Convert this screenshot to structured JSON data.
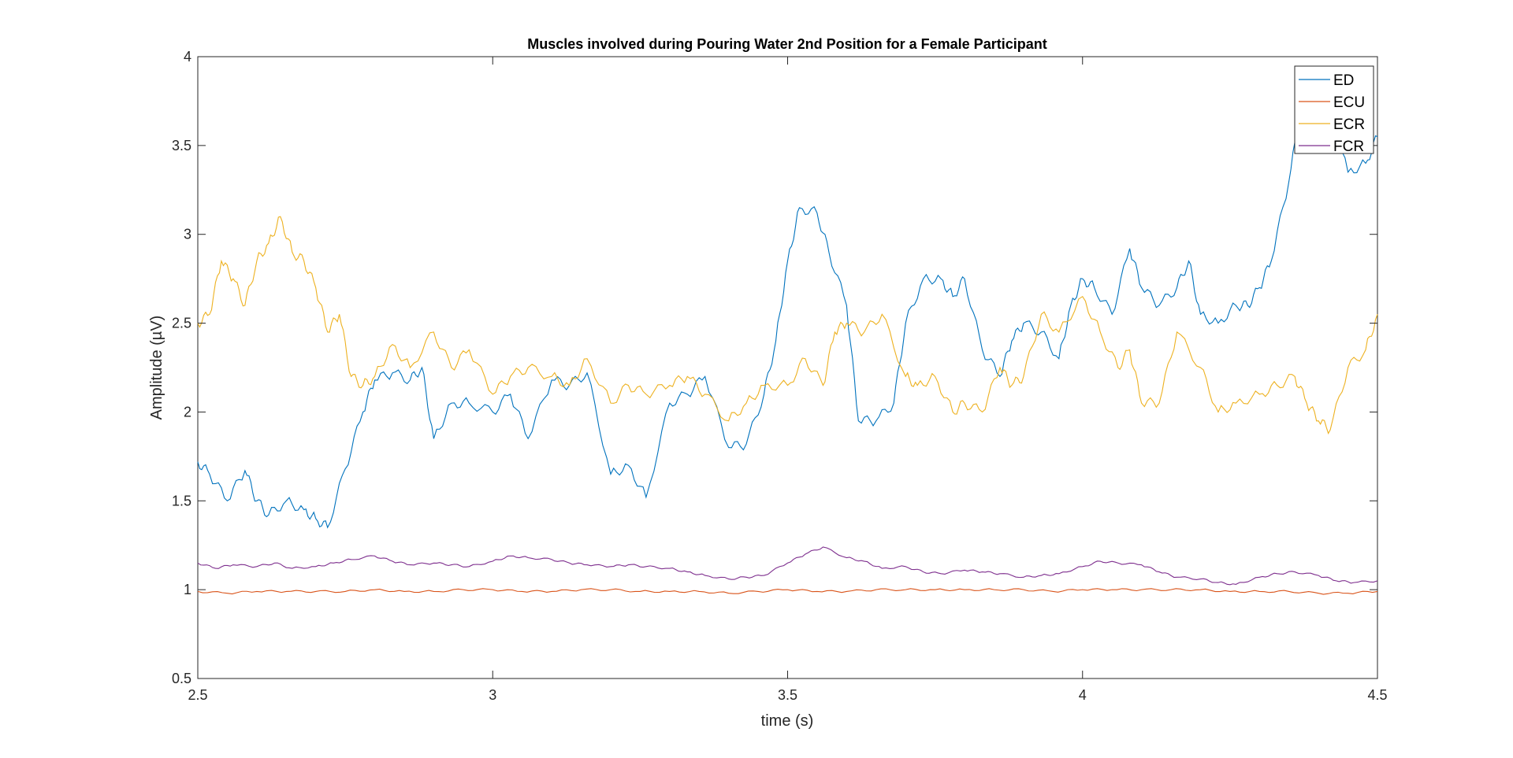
{
  "chart_data": {
    "type": "line",
    "title": "Muscles involved during Pouring Water 2nd Position for a Female Participant",
    "xlabel": "time (s)",
    "ylabel": "Amplitude (µV)",
    "xlim": [
      2.5,
      4.5
    ],
    "ylim": [
      0.5,
      4
    ],
    "xticks": [
      2.5,
      3,
      3.5,
      4,
      4.5
    ],
    "xtick_labels": [
      "2.5",
      "3",
      "3.5",
      "4",
      "4.5"
    ],
    "yticks": [
      0.5,
      1,
      1.5,
      2,
      2.5,
      3,
      3.5,
      4
    ],
    "ytick_labels": [
      "0.5",
      "1",
      "1.5",
      "2",
      "2.5",
      "3",
      "3.5",
      "4"
    ],
    "grid": false,
    "legend_position": "top-right",
    "series": [
      {
        "name": "ED",
        "color": "#0072BD",
        "x": [
          2.5,
          2.52,
          2.55,
          2.58,
          2.6,
          2.62,
          2.65,
          2.68,
          2.7,
          2.72,
          2.75,
          2.78,
          2.8,
          2.83,
          2.86,
          2.88,
          2.9,
          2.93,
          2.96,
          3.0,
          3.03,
          3.06,
          3.1,
          3.13,
          3.16,
          3.2,
          3.23,
          3.26,
          3.3,
          3.33,
          3.36,
          3.4,
          3.43,
          3.46,
          3.48,
          3.5,
          3.52,
          3.55,
          3.57,
          3.6,
          3.62,
          3.65,
          3.68,
          3.7,
          3.73,
          3.76,
          3.78,
          3.8,
          3.83,
          3.86,
          3.88,
          3.9,
          3.93,
          3.96,
          3.98,
          4.0,
          4.02,
          4.05,
          4.08,
          4.1,
          4.13,
          4.16,
          4.18,
          4.2,
          4.23,
          4.26,
          4.28,
          4.3,
          4.32,
          4.35,
          4.37,
          4.4,
          4.42,
          4.45,
          4.48,
          4.5
        ],
        "y": [
          1.72,
          1.65,
          1.5,
          1.67,
          1.5,
          1.42,
          1.5,
          1.45,
          1.4,
          1.35,
          1.68,
          2.0,
          2.18,
          2.22,
          2.18,
          2.25,
          1.85,
          2.05,
          2.05,
          2.0,
          2.1,
          1.85,
          2.18,
          2.15,
          2.22,
          1.65,
          1.7,
          1.52,
          2.05,
          2.1,
          2.2,
          1.8,
          1.82,
          2.1,
          2.4,
          2.85,
          3.15,
          3.12,
          2.9,
          2.6,
          1.95,
          1.95,
          2.05,
          2.5,
          2.75,
          2.75,
          2.65,
          2.75,
          2.35,
          2.2,
          2.4,
          2.5,
          2.45,
          2.3,
          2.6,
          2.75,
          2.7,
          2.55,
          2.92,
          2.7,
          2.6,
          2.7,
          2.85,
          2.55,
          2.5,
          2.6,
          2.6,
          2.7,
          2.85,
          3.3,
          3.7,
          3.6,
          3.75,
          3.35,
          3.4,
          3.55
        ]
      },
      {
        "name": "ECU",
        "color": "#D95319",
        "x": [
          2.5,
          2.55,
          2.6,
          2.65,
          2.7,
          2.75,
          2.8,
          2.85,
          2.9,
          2.95,
          3.0,
          3.05,
          3.1,
          3.15,
          3.2,
          3.25,
          3.3,
          3.35,
          3.4,
          3.45,
          3.5,
          3.55,
          3.6,
          3.65,
          3.7,
          3.75,
          3.8,
          3.85,
          3.9,
          3.95,
          4.0,
          4.05,
          4.1,
          4.15,
          4.2,
          4.25,
          4.3,
          4.35,
          4.4,
          4.45,
          4.5
        ],
        "y": [
          0.99,
          0.98,
          0.99,
          0.99,
          0.99,
          0.99,
          1.0,
          0.99,
          0.99,
          1.0,
          1.0,
          0.99,
          0.99,
          1.0,
          1.0,
          0.99,
          0.99,
          0.99,
          0.98,
          0.99,
          1.0,
          0.99,
          0.99,
          1.0,
          1.0,
          1.0,
          1.0,
          1.0,
          1.0,
          0.99,
          1.0,
          1.0,
          1.0,
          1.0,
          1.0,
          0.99,
          0.99,
          0.99,
          0.98,
          0.98,
          0.99
        ]
      },
      {
        "name": "ECR",
        "color": "#EDB120",
        "x": [
          2.5,
          2.52,
          2.54,
          2.56,
          2.58,
          2.6,
          2.62,
          2.64,
          2.66,
          2.68,
          2.7,
          2.72,
          2.74,
          2.76,
          2.78,
          2.8,
          2.83,
          2.86,
          2.9,
          2.93,
          2.96,
          3.0,
          3.03,
          3.06,
          3.1,
          3.13,
          3.16,
          3.2,
          3.23,
          3.26,
          3.3,
          3.33,
          3.36,
          3.4,
          3.43,
          3.46,
          3.5,
          3.53,
          3.56,
          3.58,
          3.6,
          3.63,
          3.66,
          3.7,
          3.72,
          3.75,
          3.78,
          3.8,
          3.83,
          3.86,
          3.88,
          3.9,
          3.93,
          3.96,
          4.0,
          4.03,
          4.06,
          4.08,
          4.1,
          4.13,
          4.16,
          4.2,
          4.23,
          4.26,
          4.3,
          4.33,
          4.36,
          4.38,
          4.4,
          4.42,
          4.45,
          4.48,
          4.5
        ],
        "y": [
          2.5,
          2.55,
          2.85,
          2.75,
          2.6,
          2.85,
          2.95,
          3.1,
          2.9,
          2.85,
          2.7,
          2.45,
          2.55,
          2.2,
          2.15,
          2.2,
          2.38,
          2.25,
          2.45,
          2.25,
          2.35,
          2.1,
          2.2,
          2.25,
          2.2,
          2.15,
          2.3,
          2.05,
          2.15,
          2.1,
          2.15,
          2.2,
          2.1,
          1.95,
          2.05,
          2.15,
          2.15,
          2.3,
          2.15,
          2.45,
          2.5,
          2.45,
          2.55,
          2.2,
          2.15,
          2.2,
          2.0,
          2.05,
          2.0,
          2.25,
          2.15,
          2.2,
          2.55,
          2.45,
          2.65,
          2.45,
          2.25,
          2.35,
          2.05,
          2.05,
          2.45,
          2.25,
          2.0,
          2.05,
          2.1,
          2.15,
          2.2,
          2.05,
          1.95,
          1.9,
          2.25,
          2.35,
          2.55
        ]
      },
      {
        "name": "FCR",
        "color": "#7E2F8E",
        "x": [
          2.5,
          2.53,
          2.56,
          2.6,
          2.63,
          2.66,
          2.7,
          2.73,
          2.76,
          2.8,
          2.83,
          2.86,
          2.9,
          2.93,
          2.96,
          3.0,
          3.03,
          3.06,
          3.1,
          3.13,
          3.16,
          3.2,
          3.23,
          3.26,
          3.3,
          3.33,
          3.36,
          3.4,
          3.43,
          3.46,
          3.5,
          3.53,
          3.56,
          3.6,
          3.63,
          3.66,
          3.7,
          3.73,
          3.76,
          3.8,
          3.83,
          3.86,
          3.9,
          3.93,
          3.96,
          4.0,
          4.03,
          4.06,
          4.1,
          4.13,
          4.16,
          4.2,
          4.23,
          4.26,
          4.3,
          4.33,
          4.36,
          4.4,
          4.43,
          4.46,
          4.5
        ],
        "y": [
          1.15,
          1.12,
          1.14,
          1.13,
          1.15,
          1.12,
          1.13,
          1.15,
          1.17,
          1.19,
          1.16,
          1.14,
          1.15,
          1.14,
          1.13,
          1.16,
          1.19,
          1.18,
          1.17,
          1.15,
          1.14,
          1.13,
          1.14,
          1.13,
          1.12,
          1.1,
          1.08,
          1.06,
          1.07,
          1.08,
          1.15,
          1.2,
          1.24,
          1.18,
          1.16,
          1.12,
          1.13,
          1.1,
          1.09,
          1.11,
          1.1,
          1.09,
          1.07,
          1.08,
          1.09,
          1.13,
          1.16,
          1.15,
          1.14,
          1.1,
          1.07,
          1.06,
          1.04,
          1.03,
          1.07,
          1.09,
          1.1,
          1.08,
          1.05,
          1.04,
          1.05
        ]
      }
    ]
  }
}
